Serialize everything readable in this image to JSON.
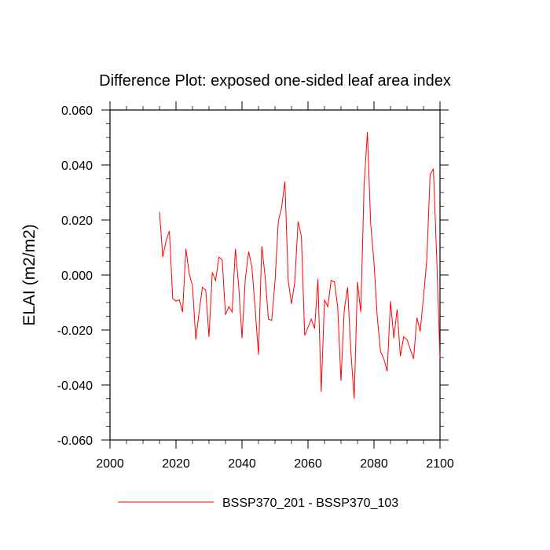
{
  "chart_data": {
    "type": "line",
    "title": "Difference Plot: exposed one-sided leaf area index",
    "xlabel": "",
    "ylabel": "ELAI  (m2/m2)",
    "xlim": [
      2000,
      2100
    ],
    "ylim": [
      -0.06,
      0.06
    ],
    "x_ticks": [
      2000,
      2020,
      2040,
      2060,
      2080,
      2100
    ],
    "x_tick_labels": [
      "2000",
      "2020",
      "2040",
      "2060",
      "2080",
      "2100"
    ],
    "y_ticks": [
      -0.06,
      -0.04,
      -0.02,
      0.0,
      0.02,
      0.04,
      0.06
    ],
    "y_tick_labels": [
      "-0.060",
      "-0.040",
      "-0.020",
      "0.000",
      "0.020",
      "0.040",
      "0.060"
    ],
    "grid": false,
    "legend_position": "bottom-center",
    "series": [
      {
        "name": "BSSP370_201 - BSSP370_103",
        "color": "#ff0000",
        "x": [
          2015,
          2016,
          2017,
          2018,
          2019,
          2020,
          2021,
          2022,
          2023,
          2024,
          2025,
          2026,
          2027,
          2028,
          2029,
          2030,
          2031,
          2032,
          2033,
          2034,
          2035,
          2036,
          2037,
          2038,
          2039,
          2040,
          2041,
          2042,
          2043,
          2044,
          2045,
          2046,
          2047,
          2048,
          2049,
          2050,
          2051,
          2052,
          2053,
          2054,
          2055,
          2056,
          2057,
          2058,
          2059,
          2060,
          2061,
          2062,
          2063,
          2064,
          2065,
          2066,
          2067,
          2068,
          2069,
          2070,
          2071,
          2072,
          2073,
          2074,
          2075,
          2076,
          2077,
          2078,
          2079,
          2080,
          2081,
          2082,
          2083,
          2084,
          2085,
          2086,
          2087,
          2088,
          2089,
          2090,
          2091,
          2092,
          2093,
          2094,
          2095,
          2096,
          2097,
          2098,
          2099,
          2100
        ],
        "values": [
          0.023,
          0.0065,
          0.0125,
          0.016,
          -0.0085,
          -0.0095,
          -0.009,
          -0.0135,
          0.0095,
          0.0005,
          -0.004,
          -0.0235,
          -0.0135,
          -0.0045,
          -0.0055,
          -0.0225,
          0.001,
          -0.002,
          0.0065,
          0.0055,
          -0.0145,
          -0.0115,
          -0.0135,
          0.0095,
          -0.004,
          -0.023,
          -0.0015,
          0.0085,
          0.003,
          -0.0125,
          -0.029,
          0.0105,
          -0.0005,
          -0.016,
          -0.0165,
          -0.0025,
          0.0195,
          0.0245,
          0.034,
          -0.002,
          -0.0105,
          -0.0025,
          0.0195,
          0.014,
          -0.022,
          -0.019,
          -0.016,
          -0.0195,
          -0.0015,
          -0.0425,
          -0.009,
          -0.0115,
          -0.002,
          -0.0025,
          -0.0115,
          -0.0385,
          -0.0125,
          -0.0045,
          -0.028,
          -0.045,
          -0.0025,
          -0.0135,
          0.0325,
          0.052,
          0.0185,
          0.0045,
          -0.0155,
          -0.028,
          -0.0305,
          -0.035,
          -0.0095,
          -0.023,
          -0.0125,
          -0.0295,
          -0.0225,
          -0.0235,
          -0.027,
          -0.0305,
          -0.0155,
          -0.0205,
          -0.008,
          0.0055,
          0.0365,
          0.0385,
          0.0065,
          -0.0305
        ]
      }
    ]
  }
}
